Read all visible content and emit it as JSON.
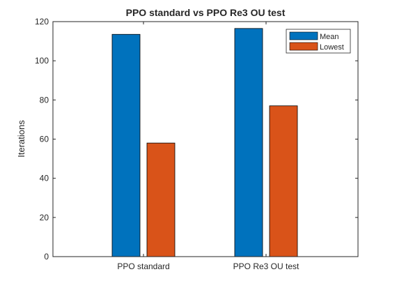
{
  "chart_data": {
    "type": "bar",
    "title": "PPO standard vs PPO Re3 OU test",
    "xlabel": "",
    "ylabel": "Iterations",
    "categories": [
      "PPO standard",
      "PPO Re3 OU test"
    ],
    "series": [
      {
        "name": "Mean",
        "values": [
          113.5,
          116.5
        ],
        "color": "#0072bd"
      },
      {
        "name": "Lowest",
        "values": [
          58,
          77
        ],
        "color": "#d95319"
      }
    ],
    "ylim": [
      0,
      120
    ],
    "yticks": [
      0,
      20,
      40,
      60,
      80,
      100,
      120
    ],
    "grid": false,
    "legend": "top-right"
  }
}
